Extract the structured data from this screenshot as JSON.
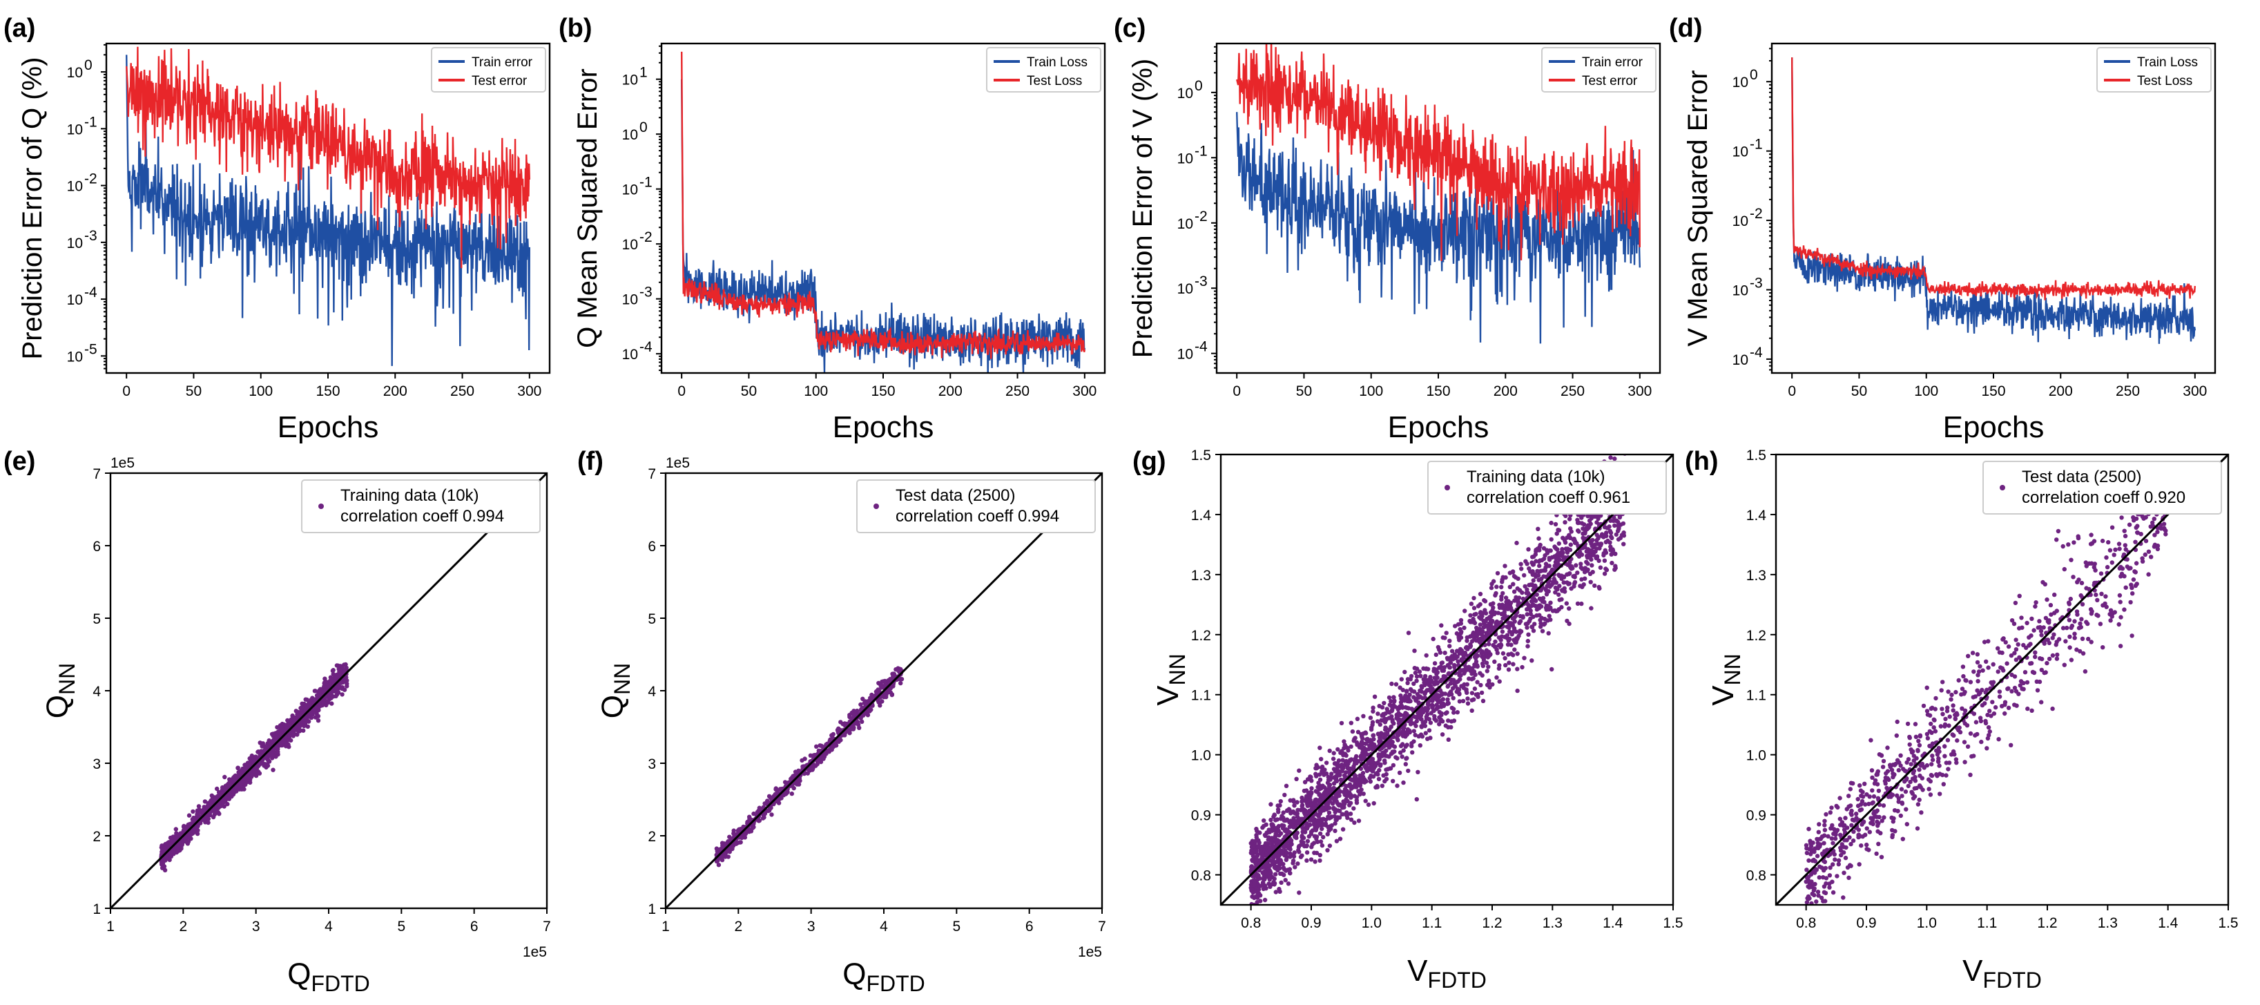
{
  "colors": {
    "train": "#1f4fa3",
    "test": "#e8262a",
    "scatter": "#6e2381",
    "diag": "#000000"
  },
  "chart_data": [
    {
      "id": "a",
      "panel_label": "(a)",
      "type": "line",
      "yscale": "log",
      "xlabel": "Epochs",
      "ylabel": "Prediction Error of Q (%)",
      "xlim": [
        -15,
        315
      ],
      "ylim_log10": [
        -5.3,
        0.5
      ],
      "xticks": [
        0,
        50,
        100,
        150,
        200,
        250,
        300
      ],
      "xtick_labels": [
        "0",
        "50",
        "100",
        "150",
        "200",
        "250",
        "300"
      ],
      "ytick_exps": [
        0,
        -1,
        -2,
        -3,
        -4,
        -5
      ],
      "ytick_labels": [
        "10",
        "10",
        "10",
        "10",
        "10",
        "10"
      ],
      "ytick_exp_labels": [
        "0",
        "-1",
        "-2",
        "-3",
        "-4",
        "-5"
      ],
      "legend_loc": "upper right",
      "series": [
        {
          "name": "Train error",
          "color": "#1f4fa3",
          "seed": 11,
          "start": 0.3,
          "levels": [
            [
              0,
              -1.9
            ],
            [
              10,
              -1.9
            ],
            [
              40,
              -2.5
            ],
            [
              100,
              -2.7
            ],
            [
              200,
              -3.0
            ],
            [
              300,
              -3.2
            ]
          ],
          "noise": 0.38,
          "spikes": 0.06,
          "spikeDepth": 1.6
        },
        {
          "name": "Test error",
          "color": "#e8262a",
          "seed": 23,
          "start": 0.1,
          "levels": [
            [
              0,
              -0.4
            ],
            [
              50,
              -0.5
            ],
            [
              100,
              -1.0
            ],
            [
              150,
              -1.1
            ],
            [
              200,
              -1.8
            ],
            [
              300,
              -2.0
            ]
          ],
          "noise": 0.35,
          "spikes": 0.04,
          "spikeDepth": 1.2
        }
      ]
    },
    {
      "id": "b",
      "panel_label": "(b)",
      "type": "line",
      "yscale": "log",
      "xlabel": "Epochs",
      "ylabel": "Q Mean Squared Error",
      "xlim": [
        -15,
        315
      ],
      "ylim_log10": [
        -4.35,
        1.65
      ],
      "xticks": [
        0,
        50,
        100,
        150,
        200,
        250,
        300
      ],
      "xtick_labels": [
        "0",
        "50",
        "100",
        "150",
        "200",
        "250",
        "300"
      ],
      "ytick_exps": [
        1,
        0,
        -1,
        -2,
        -3,
        -4
      ],
      "ytick_labels": [
        "10",
        "10",
        "10",
        "10",
        "10",
        "10"
      ],
      "ytick_exp_labels": [
        "1",
        "0",
        "-1",
        "-2",
        "-3",
        "-4"
      ],
      "legend_loc": "upper right",
      "series": [
        {
          "name": "Train Loss",
          "color": "#1f4fa3",
          "seed": 31,
          "start": 1.0,
          "levels": [
            [
              2,
              -2.6
            ],
            [
              10,
              -2.8
            ],
            [
              50,
              -2.9
            ],
            [
              99,
              -2.9
            ],
            [
              101,
              -3.7
            ],
            [
              300,
              -3.75
            ]
          ],
          "noise": 0.22,
          "spikes": 0.0,
          "spikeDepth": 0
        },
        {
          "name": "Test Loss",
          "color": "#e8262a",
          "seed": 37,
          "start": 1.5,
          "levels": [
            [
              2,
              -2.8
            ],
            [
              50,
              -3.1
            ],
            [
              99,
              -3.1
            ],
            [
              101,
              -3.78
            ],
            [
              140,
              -3.72
            ],
            [
              160,
              -3.8
            ],
            [
              300,
              -3.8
            ]
          ],
          "noise": 0.1,
          "spikes": 0.0,
          "spikeDepth": 0
        }
      ]
    },
    {
      "id": "c",
      "panel_label": "(c)",
      "type": "line",
      "yscale": "log",
      "xlabel": "Epochs",
      "ylabel": "Prediction Error of V (%)",
      "xlim": [
        -15,
        315
      ],
      "ylim_log10": [
        -4.3,
        0.75
      ],
      "xticks": [
        0,
        50,
        100,
        150,
        200,
        250,
        300
      ],
      "xtick_labels": [
        "0",
        "50",
        "100",
        "150",
        "200",
        "250",
        "300"
      ],
      "ytick_exps": [
        0,
        -1,
        -2,
        -3,
        -4
      ],
      "ytick_labels": [
        "10",
        "10",
        "10",
        "10",
        "10"
      ],
      "ytick_exp_labels": [
        "0",
        "-1",
        "-2",
        "-3",
        "-4"
      ],
      "legend_loc": "upper right",
      "series": [
        {
          "name": "Train error",
          "color": "#1f4fa3",
          "seed": 41,
          "start": -0.3,
          "levels": [
            [
              0,
              -1.1
            ],
            [
              50,
              -1.7
            ],
            [
              100,
              -2.0
            ],
            [
              200,
              -2.2
            ],
            [
              300,
              -2.1
            ]
          ],
          "noise": 0.35,
          "spikes": 0.07,
          "spikeDepth": 1.4
        },
        {
          "name": "Test error",
          "color": "#e8262a",
          "seed": 43,
          "start": 0.2,
          "levels": [
            [
              0,
              0.1
            ],
            [
              50,
              0.0
            ],
            [
              100,
              -0.6
            ],
            [
              150,
              -0.9
            ],
            [
              200,
              -1.4
            ],
            [
              300,
              -1.5
            ]
          ],
          "noise": 0.32,
          "spikes": 0.04,
          "spikeDepth": 1.0
        }
      ]
    },
    {
      "id": "d",
      "panel_label": "(d)",
      "type": "line",
      "yscale": "log",
      "xlabel": "Epochs",
      "ylabel": "V Mean Squared Error",
      "xlim": [
        -15,
        315
      ],
      "ylim_log10": [
        -4.2,
        0.55
      ],
      "xticks": [
        0,
        50,
        100,
        150,
        200,
        250,
        300
      ],
      "xtick_labels": [
        "0",
        "50",
        "100",
        "150",
        "200",
        "250",
        "300"
      ],
      "ytick_exps": [
        0,
        -1,
        -2,
        -3,
        -4
      ],
      "ytick_labels": [
        "10",
        "10",
        "10",
        "10",
        "10"
      ],
      "ytick_exp_labels": [
        "0",
        "-1",
        "-2",
        "-3",
        "-4"
      ],
      "legend_loc": "upper right",
      "series": [
        {
          "name": "Train Loss",
          "color": "#1f4fa3",
          "seed": 51,
          "start": 0.35,
          "levels": [
            [
              2,
              -2.5
            ],
            [
              10,
              -2.7
            ],
            [
              99,
              -2.85
            ],
            [
              101,
              -3.25
            ],
            [
              300,
              -3.45
            ]
          ],
          "noise": 0.14,
          "spikes": 0.0,
          "spikeDepth": 0
        },
        {
          "name": "Test Loss",
          "color": "#e8262a",
          "seed": 53,
          "start": 0.35,
          "levels": [
            [
              2,
              -2.4
            ],
            [
              50,
              -2.7
            ],
            [
              99,
              -2.75
            ],
            [
              101,
              -3.0
            ],
            [
              300,
              -3.0
            ]
          ],
          "noise": 0.05,
          "spikes": 0.0,
          "spikeDepth": 0
        }
      ]
    },
    {
      "id": "e",
      "panel_label": "(e)",
      "type": "scatter",
      "xlabel": "Q",
      "xlabel_sub": "FDTD",
      "ylabel": "Q",
      "ylabel_sub": "NN",
      "offset_x": "1e5",
      "offset_y": "1e5",
      "xlim": [
        1,
        7
      ],
      "ylim": [
        1,
        7
      ],
      "xticks": [
        1,
        2,
        3,
        4,
        5,
        6,
        7
      ],
      "xtick_labels": [
        "1",
        "2",
        "3",
        "4",
        "5",
        "6",
        "7"
      ],
      "yticks": [
        1,
        2,
        3,
        4,
        5,
        6,
        7
      ],
      "ytick_labels": [
        "1",
        "2",
        "3",
        "4",
        "5",
        "6",
        "7"
      ],
      "legend": [
        "Training data (10k)",
        "correlation coeff 0.994"
      ],
      "n_points": 1800,
      "x_range": [
        1.7,
        4.25
      ],
      "spread": 0.06,
      "seed": 61
    },
    {
      "id": "f",
      "panel_label": "(f)",
      "type": "scatter",
      "xlabel": "Q",
      "xlabel_sub": "FDTD",
      "ylabel": "Q",
      "ylabel_sub": "NN",
      "offset_x": "1e5",
      "offset_y": "1e5",
      "xlim": [
        1,
        7
      ],
      "ylim": [
        1,
        7
      ],
      "xticks": [
        1,
        2,
        3,
        4,
        5,
        6,
        7
      ],
      "xtick_labels": [
        "1",
        "2",
        "3",
        "4",
        "5",
        "6",
        "7"
      ],
      "yticks": [
        1,
        2,
        3,
        4,
        5,
        6,
        7
      ],
      "ytick_labels": [
        "1",
        "2",
        "3",
        "4",
        "5",
        "6",
        "7"
      ],
      "legend": [
        "Test data (2500)",
        "correlation coeff 0.994"
      ],
      "n_points": 700,
      "x_range": [
        1.7,
        4.25
      ],
      "spread": 0.045,
      "seed": 67
    },
    {
      "id": "g",
      "panel_label": "(g)",
      "type": "scatter",
      "xlabel": "V",
      "xlabel_sub": "FDTD",
      "ylabel": "V",
      "ylabel_sub": "NN",
      "xlim": [
        0.75,
        1.5
      ],
      "ylim": [
        0.75,
        1.5
      ],
      "xticks": [
        0.8,
        0.9,
        1.0,
        1.1,
        1.2,
        1.3,
        1.4,
        1.5
      ],
      "xtick_labels": [
        "0.8",
        "0.9",
        "1.0",
        "1.1",
        "1.2",
        "1.3",
        "1.4",
        "1.5"
      ],
      "yticks": [
        0.8,
        0.9,
        1.0,
        1.1,
        1.2,
        1.3,
        1.4,
        1.5
      ],
      "ytick_labels": [
        "0.8",
        "0.9",
        "1.0",
        "1.1",
        "1.2",
        "1.3",
        "1.4",
        "1.5"
      ],
      "legend": [
        "Training data (10k)",
        "correlation coeff 0.961"
      ],
      "n_points": 2600,
      "x_range": [
        0.8,
        1.42
      ],
      "spread": 0.03,
      "seed": 71
    },
    {
      "id": "h",
      "panel_label": "(h)",
      "type": "scatter",
      "xlabel": "V",
      "xlabel_sub": "FDTD",
      "ylabel": "V",
      "ylabel_sub": "NN",
      "xlim": [
        0.75,
        1.5
      ],
      "ylim": [
        0.75,
        1.5
      ],
      "xticks": [
        0.8,
        0.9,
        1.0,
        1.1,
        1.2,
        1.3,
        1.4,
        1.5
      ],
      "xtick_labels": [
        "0.8",
        "0.9",
        "1.0",
        "1.1",
        "1.2",
        "1.3",
        "1.4",
        "1.5"
      ],
      "yticks": [
        0.8,
        0.9,
        1.0,
        1.1,
        1.2,
        1.3,
        1.4,
        1.5
      ],
      "ytick_labels": [
        "0.8",
        "0.9",
        "1.0",
        "1.1",
        "1.2",
        "1.3",
        "1.4",
        "1.5"
      ],
      "legend": [
        "Test data (2500)",
        "correlation coeff 0.920"
      ],
      "n_points": 900,
      "x_range": [
        0.8,
        1.4
      ],
      "spread": 0.035,
      "seed": 79
    }
  ]
}
